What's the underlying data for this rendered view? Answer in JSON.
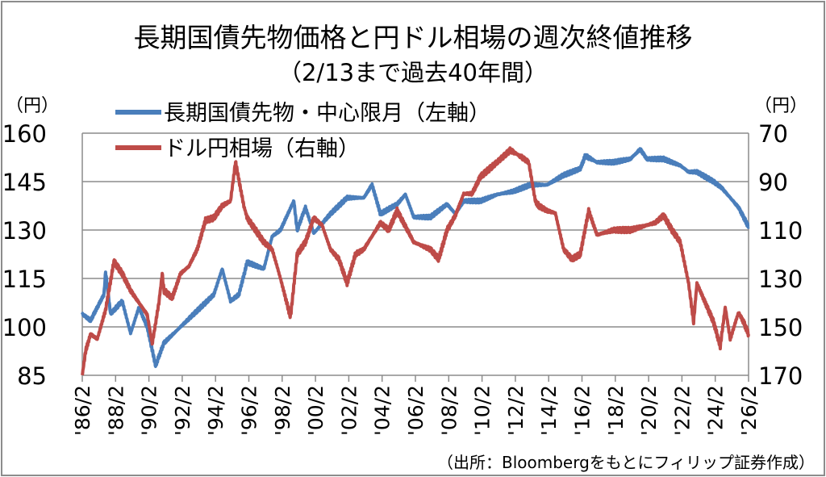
{
  "chart_data": {
    "type": "line",
    "title": "長期国債先物価格と円ドル相場の週次終値推移",
    "subtitle": "（2/13まで過去40年間）",
    "left_axis": {
      "unit": "（円）",
      "ylim": [
        85,
        160
      ],
      "ticks": [
        160,
        145,
        130,
        115,
        100,
        85
      ]
    },
    "right_axis": {
      "unit": "（円）",
      "ylim": [
        70,
        170
      ],
      "inverted": true,
      "ticks": [
        70,
        90,
        110,
        130,
        150,
        170
      ]
    },
    "x_tick_labels": [
      "'86/2",
      "'88/2",
      "'90/2",
      "'92/2",
      "'94/2",
      "'96/2",
      "'98/2",
      "'00/2",
      "'02/2",
      "'04/2",
      "'06/2",
      "'08/2",
      "'10/2",
      "'12/2",
      "'14/2",
      "'16/2",
      "'18/2",
      "'20/2",
      "'22/2",
      "'24/2",
      "'26/2"
    ],
    "xlim": [
      1986.1,
      2026.1
    ],
    "grid": "horizontal",
    "legend_placement": "top-left",
    "source": "（出所：Bloombergをもとにフィリップ証券作成）",
    "series": [
      {
        "name": "長期国債先物・中心限月（左軸）",
        "axis": "left",
        "color": "#4a7ebb",
        "x": [
          1986.1,
          1986.6,
          1987.0,
          1987.4,
          1987.5,
          1987.8,
          1988.5,
          1989.0,
          1989.5,
          1990.0,
          1990.5,
          1991.0,
          1992.0,
          1993.0,
          1994.0,
          1994.5,
          1995.0,
          1995.5,
          1996.0,
          1997.0,
          1997.5,
          1998.0,
          1998.8,
          1999.0,
          1999.5,
          2000.0,
          2001.0,
          2002.0,
          2003.0,
          2003.5,
          2004.0,
          2005.0,
          2005.5,
          2006.0,
          2007.0,
          2007.5,
          2008.0,
          2008.5,
          2009.0,
          2010.0,
          2011.0,
          2012.0,
          2013.0,
          2014.0,
          2015.0,
          2016.0,
          2016.3,
          2017.0,
          2018.0,
          2019.0,
          2019.6,
          2020.0,
          2021.0,
          2022.0,
          2022.5,
          2023.0,
          2024.0,
          2024.5,
          2025.0,
          2025.5,
          2026.1
        ],
        "y": [
          104,
          102,
          106,
          110,
          117,
          104,
          108,
          98,
          106,
          100,
          88,
          95,
          100,
          105,
          110,
          118,
          108,
          110,
          120,
          118,
          128,
          130,
          139,
          130,
          137,
          129,
          135,
          140,
          140,
          144,
          135,
          138,
          141,
          134,
          134,
          136,
          138,
          135,
          139,
          139,
          141,
          142,
          144,
          144,
          147,
          149,
          153,
          151,
          151,
          152,
          155,
          152,
          152,
          150,
          148,
          148,
          145,
          143,
          140,
          137,
          131
        ]
      },
      {
        "name": "ドル円相場（右軸）",
        "axis": "right",
        "color": "#be4b48",
        "x": [
          1986.1,
          1986.3,
          1986.6,
          1987.0,
          1987.5,
          1988.0,
          1988.5,
          1989.0,
          1989.5,
          1990.0,
          1990.3,
          1990.7,
          1990.9,
          1991.0,
          1991.5,
          1992.0,
          1992.5,
          1993.0,
          1993.5,
          1994.0,
          1994.5,
          1995.0,
          1995.3,
          1995.8,
          1996.0,
          1996.5,
          1997.0,
          1997.5,
          1998.0,
          1998.6,
          1999.0,
          1999.5,
          2000.0,
          2000.5,
          2001.0,
          2001.5,
          2002.0,
          2002.5,
          2003.0,
          2004.0,
          2004.5,
          2005.0,
          2006.0,
          2007.0,
          2007.5,
          2008.0,
          2008.5,
          2009.0,
          2009.5,
          2010.0,
          2011.0,
          2011.8,
          2012.5,
          2012.9,
          2013.3,
          2013.5,
          2014.0,
          2014.5,
          2015.0,
          2015.5,
          2016.0,
          2016.5,
          2017.0,
          2017.5,
          2018.0,
          2019.0,
          2020.0,
          2020.5,
          2021.0,
          2021.5,
          2022.0,
          2022.5,
          2022.8,
          2023.0,
          2023.5,
          2024.0,
          2024.4,
          2024.7,
          2025.0,
          2025.5,
          2025.8,
          2026.1
        ],
        "y": [
          170,
          160,
          153,
          155,
          143,
          123,
          128,
          135,
          140,
          145,
          157,
          140,
          128,
          135,
          138,
          128,
          125,
          118,
          106,
          105,
          100,
          98,
          82,
          100,
          105,
          110,
          115,
          118,
          130,
          146,
          120,
          115,
          105,
          108,
          118,
          122,
          132,
          120,
          118,
          107,
          110,
          102,
          115,
          118,
          122,
          110,
          104,
          95,
          95,
          88,
          82,
          77,
          80,
          82,
          98,
          100,
          102,
          103,
          118,
          122,
          120,
          102,
          112,
          111,
          110,
          110,
          108,
          107,
          104,
          110,
          115,
          132,
          148,
          132,
          140,
          148,
          158,
          142,
          155,
          144,
          148,
          153
        ]
      }
    ]
  }
}
